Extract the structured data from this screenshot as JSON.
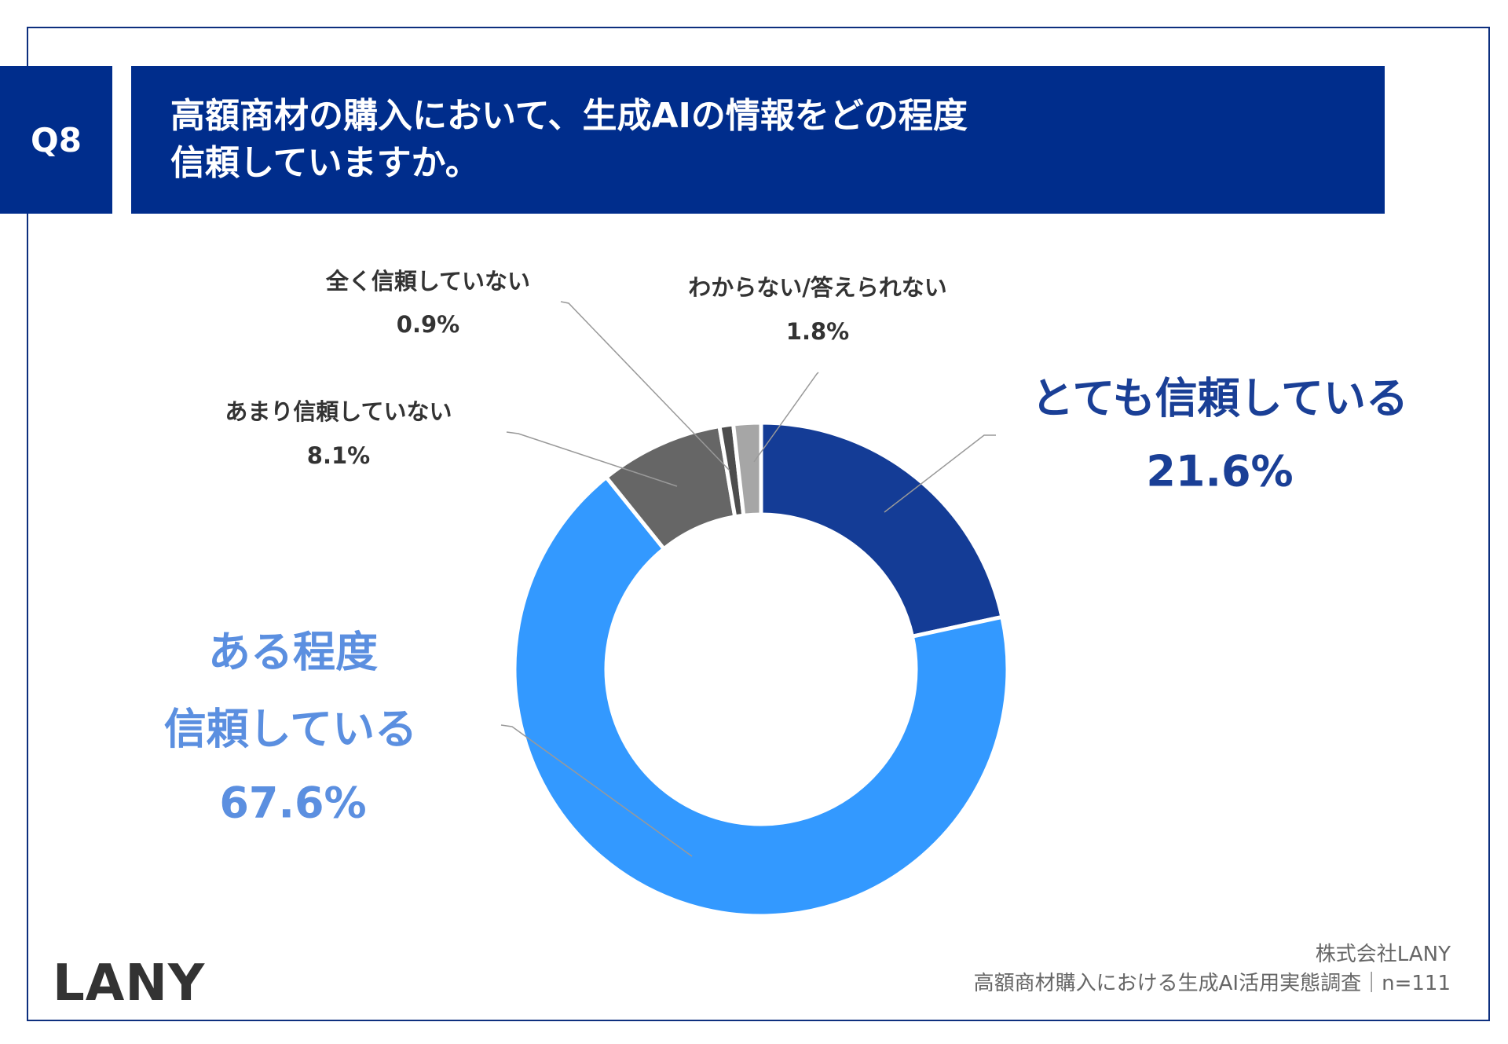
{
  "header": {
    "question_no": "Q8",
    "title_line1": "高額商材の購入において、生成AIの情報をどの程度",
    "title_line2": "信頼していますか。"
  },
  "chart_data": {
    "type": "pie",
    "variant": "donut",
    "title": "高額商材の購入において、生成AIの情報をどの程度信頼していますか。",
    "start": "top, clockwise",
    "slices": [
      {
        "label": "とても信頼している",
        "value": 21.6,
        "value_label": "21.6%",
        "color": "#143c96",
        "label_color": "#1a3f96"
      },
      {
        "label_line1": "ある程度",
        "label_line2": "信頼している",
        "label": "ある程度信頼している",
        "value": 67.6,
        "value_label": "67.6%",
        "color": "#3399ff",
        "label_color": "#5b8fe0"
      },
      {
        "label": "あまり信頼していない",
        "value": 8.1,
        "value_label": "8.1%",
        "color": "#666666",
        "label_color": "#333333"
      },
      {
        "label": "全く信頼していない",
        "value": 0.9,
        "value_label": "0.9%",
        "color": "#4d4d4d",
        "label_color": "#333333"
      },
      {
        "label": "わからない/答えられない",
        "value": 1.8,
        "value_label": "1.8%",
        "color": "#a6a6a6",
        "label_color": "#333333"
      }
    ]
  },
  "footer": {
    "company": "株式会社LANY",
    "survey": "高額商材購入における生成AI活用実態調査｜n=111",
    "logo": "LANY"
  }
}
